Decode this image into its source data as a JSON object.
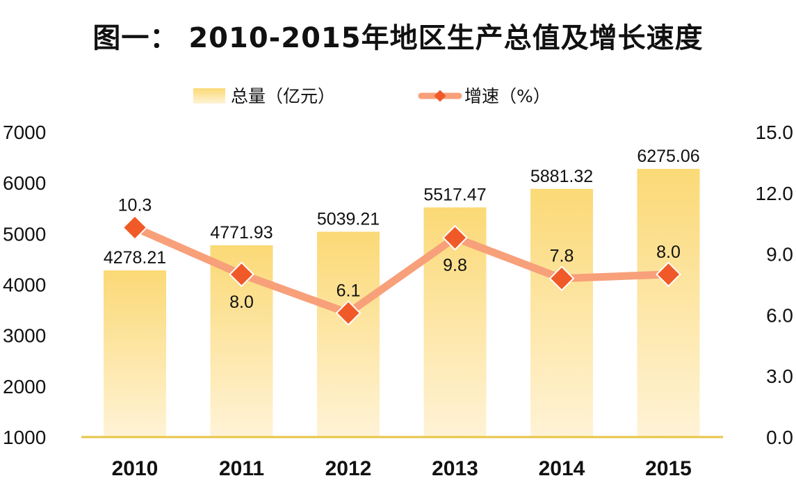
{
  "chart_data": {
    "type": "bar",
    "title": "图一： 2010-2015年地区生产总值及增长速度",
    "categories": [
      "2010",
      "2011",
      "2012",
      "2013",
      "2014",
      "2015"
    ],
    "series": [
      {
        "name": "总量（亿元）",
        "type": "bar",
        "axis": "left",
        "values": [
          4278.21,
          4771.93,
          5039.21,
          5517.47,
          5881.32,
          6275.06
        ],
        "labels": [
          "4278.21",
          "4771.93",
          "5039.21",
          "5517.47",
          "5881.32",
          "6275.06"
        ]
      },
      {
        "name": "增速（%）",
        "type": "line",
        "axis": "right",
        "values": [
          10.3,
          8.0,
          6.1,
          9.8,
          7.8,
          8.0
        ],
        "labels": [
          "10.3",
          "8.0",
          "6.1",
          "9.8",
          "7.8",
          "8.0"
        ]
      }
    ],
    "y_left": {
      "ylim": [
        1000,
        7000
      ],
      "ticks": [
        "1000",
        "2000",
        "3000",
        "4000",
        "5000",
        "6000",
        "7000"
      ]
    },
    "y_right": {
      "ylim": [
        0,
        15
      ],
      "ticks": [
        "0.0",
        "3.0",
        "6.0",
        "9.0",
        "12.0",
        "15.0"
      ]
    },
    "legend": "top-center",
    "grid": false,
    "colors": {
      "bar_top": "#fbd976",
      "bar_bottom": "#fff3d6",
      "line": "#f7a07a",
      "marker": "#f05a28",
      "baseline": "#e8c545"
    }
  }
}
